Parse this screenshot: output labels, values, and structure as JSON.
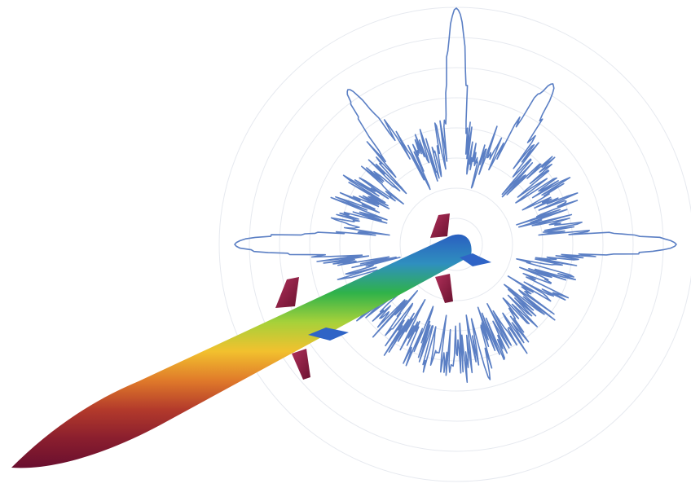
{
  "image": {
    "subject": "missile-with-radar-cross-section-plot",
    "background_color": "#ffffff"
  },
  "polar_plot": {
    "grid_color": "#e6e9ef",
    "line_color": "#5b7fc4",
    "ring_count": 8,
    "pattern": {
      "base_radius_near": 120,
      "base_radius_far": 115,
      "major_lobes": [
        {
          "angle_deg": 0,
          "value": 270
        },
        {
          "angle_deg": 180,
          "value": 272
        },
        {
          "angle_deg": 90,
          "value": 290
        },
        {
          "angle_deg": 125,
          "value": 232
        },
        {
          "angle_deg": 59,
          "value": 230
        }
      ]
    }
  },
  "missile": {
    "colormap": [
      "#6a0f2f",
      "#8a1e2e",
      "#b33a2b",
      "#e07a2a",
      "#f2c12e",
      "#a6d13a",
      "#2fb24a",
      "#2f8fbf",
      "#2a5fc0"
    ],
    "fin_color": "#8a1d3a",
    "canard_color": "#2f64c6"
  }
}
